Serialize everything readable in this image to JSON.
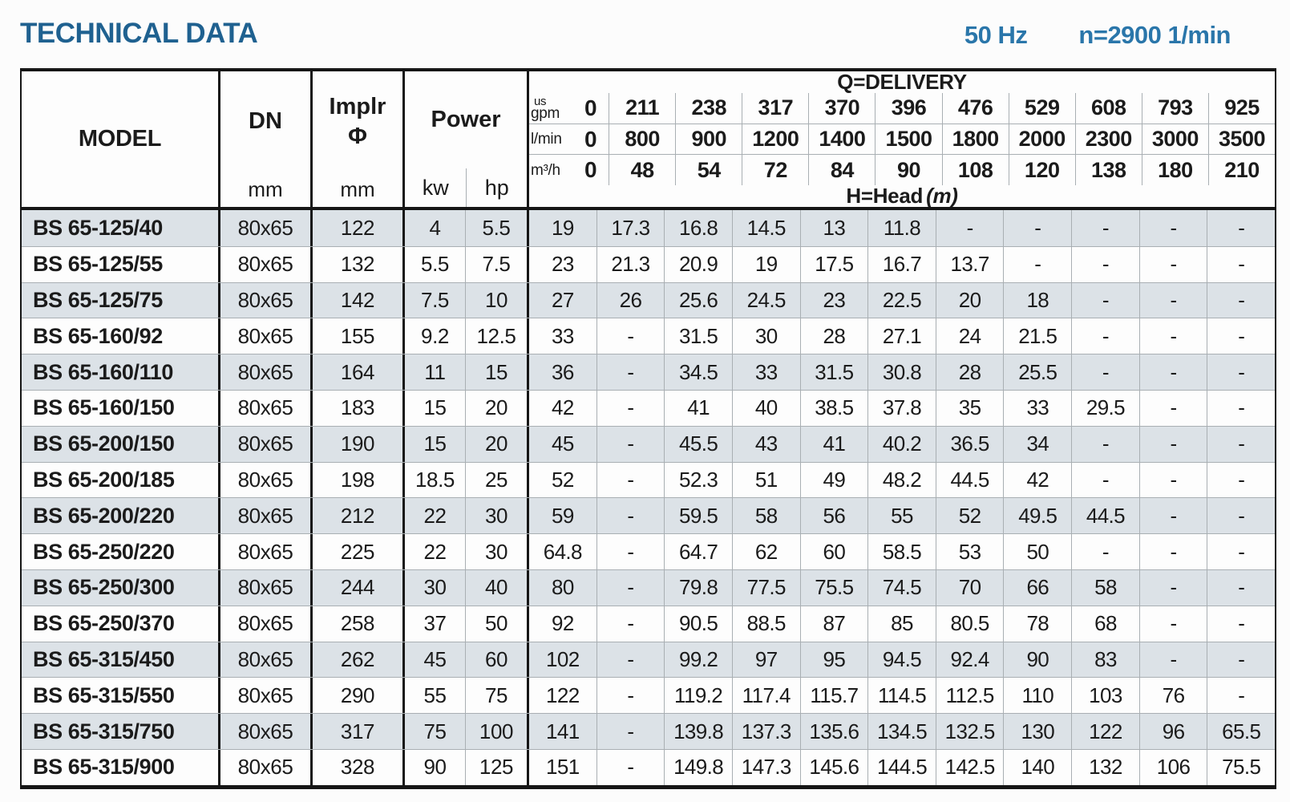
{
  "header": {
    "title": "TECHNICAL DATA",
    "frequency": "50 Hz",
    "speed": "n=2900 1/min"
  },
  "table": {
    "column_headers": {
      "model": "MODEL",
      "dn": "DN",
      "dn_unit": "mm",
      "impeller_label": "Implr",
      "impeller_symbol": "Φ",
      "impeller_unit": "mm",
      "power": "Power",
      "power_unit_kw": "kw",
      "power_unit_hp": "hp",
      "delivery_title": "Q=DELIVERY",
      "head_title": "H=Head",
      "head_unit": "(m)"
    },
    "delivery_header_rows": [
      {
        "unit_lines": [
          "us",
          "gpm"
        ],
        "values": [
          "0",
          "211",
          "238",
          "317",
          "370",
          "396",
          "476",
          "529",
          "608",
          "793",
          "925"
        ]
      },
      {
        "unit_lines": [
          "l/min"
        ],
        "values": [
          "0",
          "800",
          "900",
          "1200",
          "1400",
          "1500",
          "1800",
          "2000",
          "2300",
          "3000",
          "3500"
        ]
      },
      {
        "unit_lines": [
          "m³/h"
        ],
        "values": [
          "0",
          "48",
          "54",
          "72",
          "84",
          "90",
          "108",
          "120",
          "138",
          "180",
          "210"
        ]
      }
    ],
    "rows": [
      {
        "model": "BS 65-125/40",
        "dn": "80x65",
        "impeller": "122",
        "kw": "4",
        "hp": "5.5",
        "head": [
          "19",
          "17.3",
          "16.8",
          "14.5",
          "13",
          "11.8",
          "-",
          "-",
          "-",
          "-",
          "-"
        ]
      },
      {
        "model": "BS 65-125/55",
        "dn": "80x65",
        "impeller": "132",
        "kw": "5.5",
        "hp": "7.5",
        "head": [
          "23",
          "21.3",
          "20.9",
          "19",
          "17.5",
          "16.7",
          "13.7",
          "-",
          "-",
          "-",
          "-"
        ]
      },
      {
        "model": "BS 65-125/75",
        "dn": "80x65",
        "impeller": "142",
        "kw": "7.5",
        "hp": "10",
        "head": [
          "27",
          "26",
          "25.6",
          "24.5",
          "23",
          "22.5",
          "20",
          "18",
          "-",
          "-",
          "-"
        ]
      },
      {
        "model": "BS 65-160/92",
        "dn": "80x65",
        "impeller": "155",
        "kw": "9.2",
        "hp": "12.5",
        "head": [
          "33",
          "-",
          "31.5",
          "30",
          "28",
          "27.1",
          "24",
          "21.5",
          "-",
          "-",
          "-"
        ]
      },
      {
        "model": "BS 65-160/110",
        "dn": "80x65",
        "impeller": "164",
        "kw": "11",
        "hp": "15",
        "head": [
          "36",
          "-",
          "34.5",
          "33",
          "31.5",
          "30.8",
          "28",
          "25.5",
          "-",
          "-",
          "-"
        ]
      },
      {
        "model": "BS 65-160/150",
        "dn": "80x65",
        "impeller": "183",
        "kw": "15",
        "hp": "20",
        "head": [
          "42",
          "-",
          "41",
          "40",
          "38.5",
          "37.8",
          "35",
          "33",
          "29.5",
          "-",
          "-"
        ]
      },
      {
        "model": "BS 65-200/150",
        "dn": "80x65",
        "impeller": "190",
        "kw": "15",
        "hp": "20",
        "head": [
          "45",
          "-",
          "45.5",
          "43",
          "41",
          "40.2",
          "36.5",
          "34",
          "-",
          "-",
          "-"
        ]
      },
      {
        "model": "BS 65-200/185",
        "dn": "80x65",
        "impeller": "198",
        "kw": "18.5",
        "hp": "25",
        "head": [
          "52",
          "-",
          "52.3",
          "51",
          "49",
          "48.2",
          "44.5",
          "42",
          "-",
          "-",
          "-"
        ]
      },
      {
        "model": "BS 65-200/220",
        "dn": "80x65",
        "impeller": "212",
        "kw": "22",
        "hp": "30",
        "head": [
          "59",
          "-",
          "59.5",
          "58",
          "56",
          "55",
          "52",
          "49.5",
          "44.5",
          "-",
          "-"
        ]
      },
      {
        "model": "BS 65-250/220",
        "dn": "80x65",
        "impeller": "225",
        "kw": "22",
        "hp": "30",
        "head": [
          "64.8",
          "-",
          "64.7",
          "62",
          "60",
          "58.5",
          "53",
          "50",
          "-",
          "-",
          "-"
        ]
      },
      {
        "model": "BS 65-250/300",
        "dn": "80x65",
        "impeller": "244",
        "kw": "30",
        "hp": "40",
        "head": [
          "80",
          "-",
          "79.8",
          "77.5",
          "75.5",
          "74.5",
          "70",
          "66",
          "58",
          "-",
          "-"
        ]
      },
      {
        "model": "BS 65-250/370",
        "dn": "80x65",
        "impeller": "258",
        "kw": "37",
        "hp": "50",
        "head": [
          "92",
          "-",
          "90.5",
          "88.5",
          "87",
          "85",
          "80.5",
          "78",
          "68",
          "-",
          "-"
        ]
      },
      {
        "model": "BS 65-315/450",
        "dn": "80x65",
        "impeller": "262",
        "kw": "45",
        "hp": "60",
        "head": [
          "102",
          "-",
          "99.2",
          "97",
          "95",
          "94.5",
          "92.4",
          "90",
          "83",
          "-",
          "-"
        ]
      },
      {
        "model": "BS 65-315/550",
        "dn": "80x65",
        "impeller": "290",
        "kw": "55",
        "hp": "75",
        "head": [
          "122",
          "-",
          "119.2",
          "117.4",
          "115.7",
          "114.5",
          "112.5",
          "110",
          "103",
          "76",
          "-"
        ]
      },
      {
        "model": "BS 65-315/750",
        "dn": "80x65",
        "impeller": "317",
        "kw": "75",
        "hp": "100",
        "head": [
          "141",
          "-",
          "139.8",
          "137.3",
          "135.6",
          "134.5",
          "132.5",
          "130",
          "122",
          "96",
          "65.5"
        ]
      },
      {
        "model": "BS 65-315/900",
        "dn": "80x65",
        "impeller": "328",
        "kw": "90",
        "hp": "125",
        "head": [
          "151",
          "-",
          "149.8",
          "147.3",
          "145.6",
          "144.5",
          "142.5",
          "140",
          "132",
          "106",
          "75.5"
        ]
      }
    ]
  },
  "colors": {
    "accent_blue": "#1f6190",
    "info_blue": "#2a76aa",
    "row_shade": "#dce2e7",
    "border_dark": "#161616",
    "border_light": "#a9afb3"
  }
}
